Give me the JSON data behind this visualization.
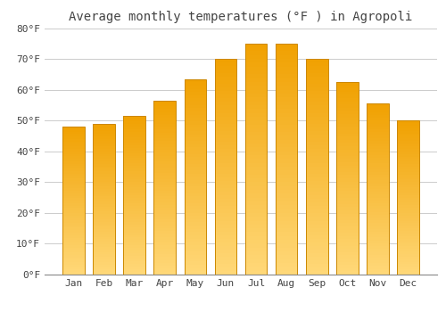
{
  "title": "Average monthly temperatures (°F ) in Agropoli",
  "months": [
    "Jan",
    "Feb",
    "Mar",
    "Apr",
    "May",
    "Jun",
    "Jul",
    "Aug",
    "Sep",
    "Oct",
    "Nov",
    "Dec"
  ],
  "values": [
    48,
    49,
    51.5,
    56.5,
    63.5,
    70,
    75,
    75,
    70,
    62.5,
    55.5,
    50
  ],
  "bar_color_top": "#F0A000",
  "bar_color_bottom": "#FFD878",
  "bar_edge_color": "#CC8800",
  "background_color": "#FFFFFF",
  "plot_bg_color": "#FFFFFF",
  "grid_color": "#CCCCCC",
  "text_color": "#444444",
  "title_fontsize": 10,
  "tick_fontsize": 8,
  "ylim": [
    0,
    80
  ],
  "yticks": [
    0,
    10,
    20,
    30,
    40,
    50,
    60,
    70,
    80
  ],
  "ytick_labels": [
    "0°F",
    "10°F",
    "20°F",
    "30°F",
    "40°F",
    "50°F",
    "60°F",
    "70°F",
    "80°F"
  ]
}
